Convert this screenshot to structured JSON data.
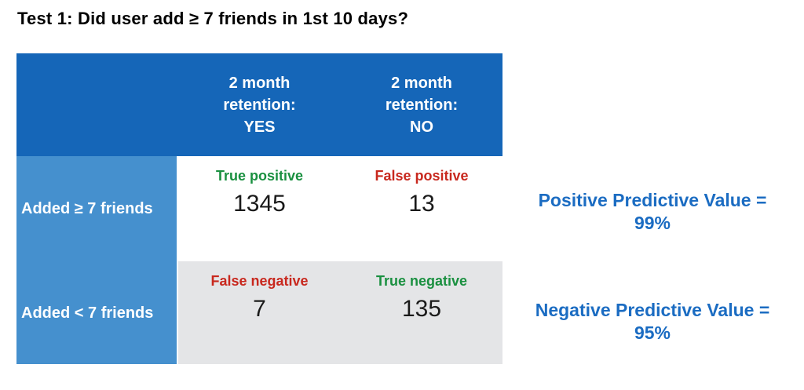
{
  "title": "Test 1: Did user add ≥ 7 friends in 1st 10 days?",
  "colors": {
    "header-blue": "#1566b8",
    "label-blue": "#4590ce",
    "cell-gray": "#e4e5e7",
    "green": "#1a9040",
    "red": "#c8281e",
    "blue-text": "#1b6cc2"
  },
  "table": {
    "col_headers": [
      "2 month\nretention:\nYES",
      "2 month\nretention:\nNO"
    ],
    "rows": [
      {
        "label": "Added ≥ 7 friends",
        "cells": [
          {
            "outcome": "True positive",
            "type": "good",
            "value": "1345"
          },
          {
            "outcome": "False positive",
            "type": "bad",
            "value": "13"
          }
        ]
      },
      {
        "label": "Added < 7 friends",
        "cells": [
          {
            "outcome": "False negative",
            "type": "bad",
            "value": "7"
          },
          {
            "outcome": "True negative",
            "type": "good",
            "value": "135"
          }
        ]
      }
    ]
  },
  "annotations": {
    "ppv": {
      "label": "Positive Predictive Value =",
      "value": "99%"
    },
    "npv": {
      "label": "Negative Predictive Value =",
      "value": "95%"
    }
  }
}
